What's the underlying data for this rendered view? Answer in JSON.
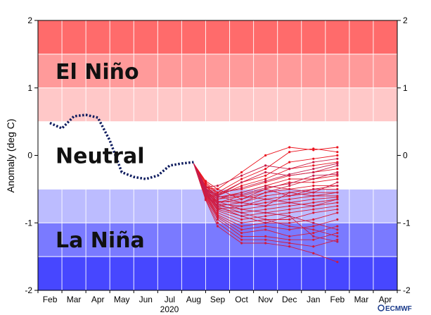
{
  "chart_data": {
    "type": "line",
    "ylabel": "Anomaly (deg C)",
    "ylim": [
      -2,
      2
    ],
    "yticks": [
      -2,
      -1,
      0,
      1,
      2
    ],
    "month_labels": [
      "Feb",
      "Mar",
      "Apr",
      "May",
      "Jun",
      "Jul",
      "Aug",
      "Sep",
      "Oct",
      "Nov",
      "Dec",
      "Jan",
      "Feb",
      "Mar",
      "Apr"
    ],
    "year_label": "2020",
    "bands": [
      {
        "label": "",
        "from": 1.5,
        "to": 2.0,
        "color": "#ff6b6b"
      },
      {
        "label": "El Niño",
        "from": 1.0,
        "to": 1.5,
        "color": "#ff9a9a"
      },
      {
        "label": "",
        "from": 0.5,
        "to": 1.0,
        "color": "#ffc8c8"
      },
      {
        "label": "Neutral",
        "from": -0.5,
        "to": 0.5,
        "color": "#ffffff"
      },
      {
        "label": "",
        "from": -1.0,
        "to": -0.5,
        "color": "#bcbcff"
      },
      {
        "label": "La Niña",
        "from": -1.5,
        "to": -1.0,
        "color": "#7a7aff"
      },
      {
        "label": "",
        "from": -2.0,
        "to": -1.5,
        "color": "#4747ff"
      }
    ],
    "observed": {
      "x": [
        0,
        0.5,
        1,
        1.5,
        2,
        2.5,
        3,
        3.5,
        4,
        4.5,
        5,
        5.5,
        6
      ],
      "y": [
        0.48,
        0.4,
        0.58,
        0.6,
        0.56,
        0.22,
        -0.25,
        -0.32,
        -0.35,
        -0.3,
        -0.15,
        -0.12,
        -0.1
      ]
    },
    "ensemble": {
      "start_x": 6,
      "start_y": -0.12,
      "x": [
        6.5,
        7,
        8,
        9,
        10,
        11,
        12
      ],
      "members": [
        [
          -0.38,
          -0.5,
          -0.25,
          0.0,
          0.12,
          0.08,
          0.12
        ],
        [
          -0.4,
          -0.55,
          -0.35,
          -0.2,
          0.05,
          0.1,
          0.05
        ],
        [
          -0.42,
          -0.58,
          -0.4,
          -0.3,
          -0.1,
          -0.05,
          0.0
        ],
        [
          -0.45,
          -0.6,
          -0.45,
          -0.35,
          -0.2,
          -0.15,
          -0.1
        ],
        [
          -0.45,
          -0.55,
          -0.5,
          -0.4,
          -0.3,
          -0.25,
          -0.2
        ],
        [
          -0.46,
          -0.62,
          -0.55,
          -0.45,
          -0.35,
          -0.35,
          -0.3
        ],
        [
          -0.48,
          -0.65,
          -0.6,
          -0.5,
          -0.4,
          -0.4,
          -0.35
        ],
        [
          -0.48,
          -0.5,
          -0.65,
          -0.55,
          -0.5,
          -0.45,
          -0.45
        ],
        [
          -0.5,
          -0.68,
          -0.7,
          -0.6,
          -0.55,
          -0.5,
          -0.5
        ],
        [
          -0.5,
          -0.7,
          -0.6,
          -0.65,
          -0.6,
          -0.55,
          -0.55
        ],
        [
          -0.52,
          -0.72,
          -0.75,
          -0.7,
          -0.65,
          -0.6,
          -0.6
        ],
        [
          -0.52,
          -0.75,
          -0.8,
          -0.75,
          -0.7,
          -0.65,
          -0.62
        ],
        [
          -0.54,
          -0.78,
          -0.85,
          -0.8,
          -0.75,
          -0.7,
          -0.65
        ],
        [
          -0.55,
          -0.8,
          -0.9,
          -0.85,
          -0.8,
          -0.75,
          -0.7
        ],
        [
          -0.56,
          -0.82,
          -0.95,
          -0.9,
          -0.85,
          -0.8,
          -0.75
        ],
        [
          -0.58,
          -0.85,
          -1.0,
          -0.95,
          -0.95,
          -0.85,
          -0.8
        ],
        [
          -0.58,
          -0.88,
          -1.05,
          -1.0,
          -1.0,
          -0.95,
          -0.85
        ],
        [
          -0.6,
          -0.9,
          -1.1,
          -1.05,
          -1.1,
          -1.05,
          -0.95
        ],
        [
          -0.6,
          -0.92,
          -1.15,
          -1.1,
          -1.2,
          -1.15,
          -1.05
        ],
        [
          -0.62,
          -0.95,
          -1.2,
          -1.2,
          -1.25,
          -1.25,
          -1.15
        ],
        [
          -0.64,
          -1.0,
          -1.25,
          -1.25,
          -1.3,
          -1.35,
          -1.25
        ],
        [
          -0.66,
          -1.05,
          -1.3,
          -1.3,
          -1.35,
          -1.45,
          -1.58
        ],
        [
          -0.5,
          -0.6,
          -0.7,
          -0.55,
          -0.45,
          -0.35,
          -0.25
        ],
        [
          -0.52,
          -0.65,
          -0.55,
          -0.45,
          -0.5,
          -0.55,
          -0.4
        ],
        [
          -0.54,
          -0.7,
          -0.65,
          -0.5,
          -0.6,
          -0.5,
          -0.45
        ],
        [
          -0.56,
          -0.75,
          -0.7,
          -0.75,
          -0.55,
          -0.6,
          -0.55
        ],
        [
          -0.58,
          -0.8,
          -0.75,
          -0.65,
          -0.7,
          -0.75,
          -0.65
        ],
        [
          -0.47,
          -0.45,
          -0.3,
          -0.15,
          -0.2,
          -0.1,
          -0.05
        ],
        [
          -0.5,
          -0.6,
          -0.4,
          -0.25,
          -0.3,
          -0.25,
          -0.15
        ],
        [
          -0.53,
          -0.68,
          -0.8,
          -0.85,
          -0.9,
          -1.0,
          -1.1
        ],
        [
          -0.55,
          -0.72,
          -0.85,
          -0.95,
          -1.05,
          -1.1,
          -1.2
        ],
        [
          -0.57,
          -0.76,
          -0.9,
          -1.0,
          -0.9,
          -1.2,
          -1.28
        ],
        [
          -0.49,
          -0.58,
          -0.48,
          -0.38,
          -0.28,
          -0.2,
          -0.12
        ],
        [
          -0.51,
          -0.62,
          -0.58,
          -0.48,
          -0.42,
          -0.3,
          -0.28
        ]
      ]
    }
  },
  "logo": {
    "text": "ECMWF"
  }
}
